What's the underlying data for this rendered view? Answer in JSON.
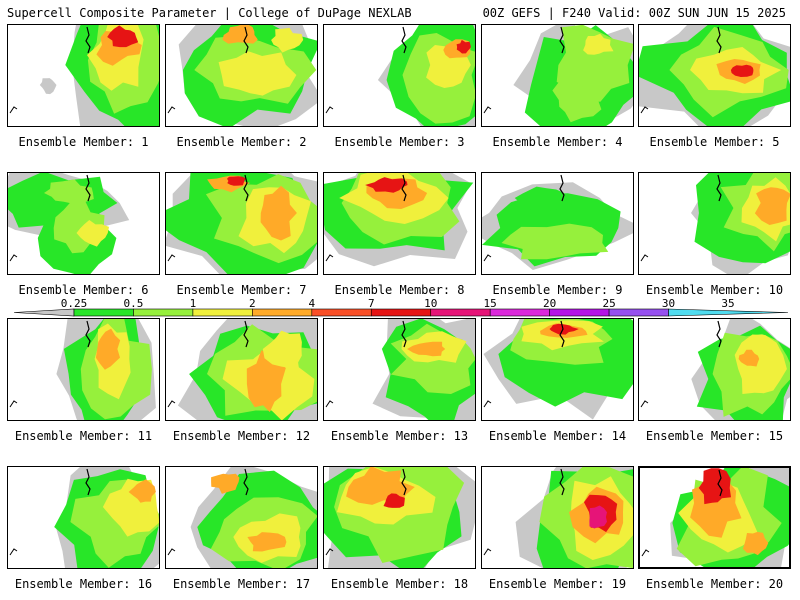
{
  "header": {
    "title_left": "Supercell Composite Parameter | College of DuPage NEXLAB",
    "title_right": "00Z GEFS | F240 Valid: 00Z SUN JUN 15 2025"
  },
  "colorbar": {
    "levels": [
      "0.25",
      "0.5",
      "1",
      "2",
      "4",
      "7",
      "10",
      "15",
      "20",
      "25",
      "30",
      "35"
    ],
    "colors": [
      "#c8c8c8",
      "#28e628",
      "#96f03c",
      "#f0f03c",
      "#ffaa28",
      "#fa5028",
      "#e61414",
      "#e61478",
      "#dc28dc",
      "#b414e6",
      "#9650f0",
      "#50dcf0"
    ]
  },
  "panel_label_prefix": "Ensemble Member: ",
  "members": [
    {
      "label": "Ensemble Member: 1"
    },
    {
      "label": "Ensemble Member: 2"
    },
    {
      "label": "Ensemble Member: 3"
    },
    {
      "label": "Ensemble Member: 4"
    },
    {
      "label": "Ensemble Member: 5"
    },
    {
      "label": "Ensemble Member: 6"
    },
    {
      "label": "Ensemble Member: 7"
    },
    {
      "label": "Ensemble Member: 8"
    },
    {
      "label": "Ensemble Member: 9"
    },
    {
      "label": "Ensemble Member: 10"
    },
    {
      "label": "Ensemble Member: 11"
    },
    {
      "label": "Ensemble Member: 12"
    },
    {
      "label": "Ensemble Member: 13"
    },
    {
      "label": "Ensemble Member: 14"
    },
    {
      "label": "Ensemble Member: 15"
    },
    {
      "label": "Ensemble Member: 16"
    },
    {
      "label": "Ensemble Member: 17"
    },
    {
      "label": "Ensemble Member: 18"
    },
    {
      "label": "Ensemble Member: 19"
    },
    {
      "label": "Ensemble Member: 20"
    }
  ],
  "selected_member": "20"
}
